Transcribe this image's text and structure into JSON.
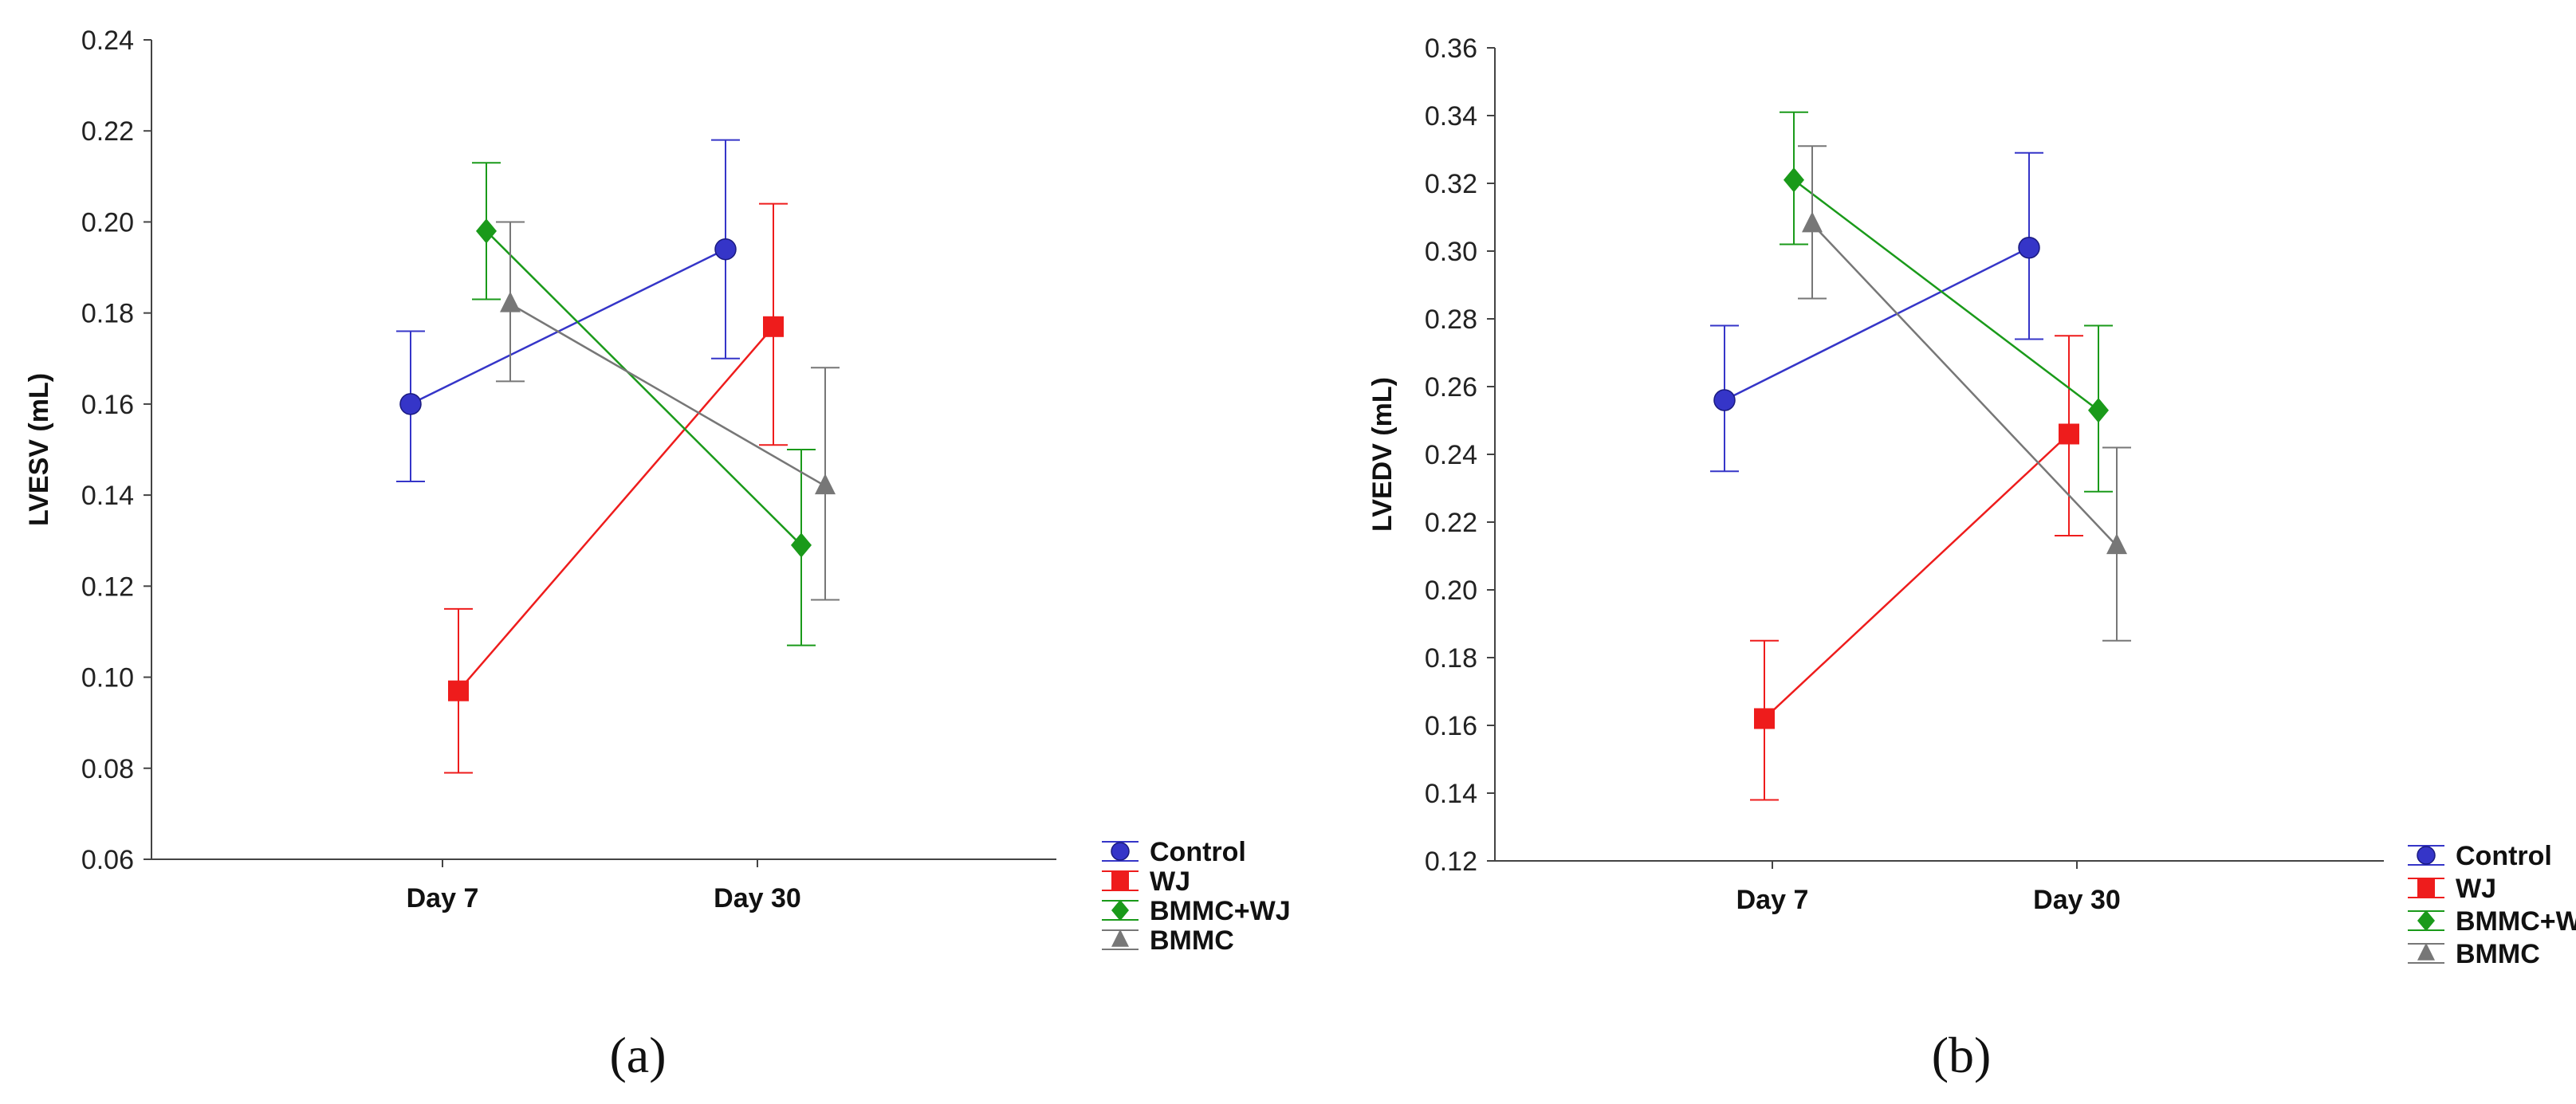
{
  "chart_data": [
    {
      "type": "line",
      "panel_label": "(a)",
      "ylabel": "LVESV (mL)",
      "xlabel": "",
      "categories": [
        "Day 7",
        "Day 30"
      ],
      "ylim": [
        0.06,
        0.24
      ],
      "yticks": [
        "0.06",
        "0.08",
        "0.10",
        "0.12",
        "0.14",
        "0.16",
        "0.18",
        "0.20",
        "0.22",
        "0.24"
      ],
      "legend_position": "bottom-right",
      "series": [
        {
          "name": "Control",
          "color": "#3535c8",
          "marker": "circle",
          "values": [
            0.16,
            0.194
          ],
          "err_low": [
            0.143,
            0.17
          ],
          "err_high": [
            0.176,
            0.218
          ]
        },
        {
          "name": "WJ",
          "color": "#ee1c1c",
          "marker": "square",
          "values": [
            0.097,
            0.177
          ],
          "err_low": [
            0.079,
            0.151
          ],
          "err_high": [
            0.115,
            0.204
          ]
        },
        {
          "name": "BMMC+WJ",
          "color": "#1a9a1a",
          "marker": "diamond",
          "values": [
            0.198,
            0.129
          ],
          "err_low": [
            0.183,
            0.107
          ],
          "err_high": [
            0.213,
            0.15
          ]
        },
        {
          "name": "BMMC",
          "color": "#777777",
          "marker": "triangle",
          "values": [
            0.182,
            0.142
          ],
          "err_low": [
            0.165,
            0.117
          ],
          "err_high": [
            0.2,
            0.168
          ]
        }
      ]
    },
    {
      "type": "line",
      "panel_label": "(b)",
      "ylabel": "LVEDV (mL)",
      "xlabel": "",
      "categories": [
        "Day 7",
        "Day 30"
      ],
      "ylim": [
        0.12,
        0.36
      ],
      "yticks": [
        "0.12",
        "0.14",
        "0.16",
        "0.18",
        "0.20",
        "0.22",
        "0.24",
        "0.26",
        "0.28",
        "0.30",
        "0.32",
        "0.34",
        "0.36"
      ],
      "legend_position": "bottom-right",
      "series": [
        {
          "name": "Control",
          "color": "#3535c8",
          "marker": "circle",
          "values": [
            0.256,
            0.301
          ],
          "err_low": [
            0.235,
            0.274
          ],
          "err_high": [
            0.278,
            0.329
          ]
        },
        {
          "name": "WJ",
          "color": "#ee1c1c",
          "marker": "square",
          "values": [
            0.162,
            0.246
          ],
          "err_low": [
            0.138,
            0.216
          ],
          "err_high": [
            0.185,
            0.275
          ]
        },
        {
          "name": "BMMC+WJ",
          "color": "#1a9a1a",
          "marker": "diamond",
          "values": [
            0.321,
            0.253
          ],
          "err_low": [
            0.302,
            0.229
          ],
          "err_high": [
            0.341,
            0.278
          ]
        },
        {
          "name": "BMMC",
          "color": "#777777",
          "marker": "triangle",
          "values": [
            0.308,
            0.213
          ],
          "err_low": [
            0.286,
            0.185
          ],
          "err_high": [
            0.331,
            0.242
          ]
        }
      ]
    }
  ]
}
